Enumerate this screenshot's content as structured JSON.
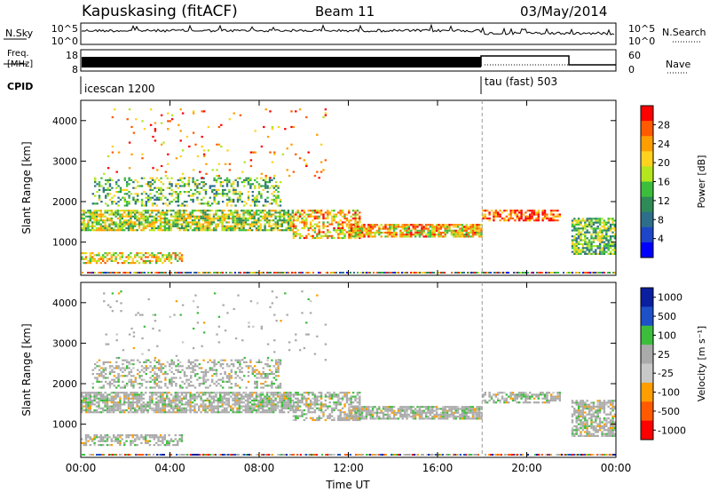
{
  "header": {
    "station": "Kapuskasing (fitACF)",
    "beam": "Beam 11",
    "date": "03/May/2014"
  },
  "strip": {
    "nsky_label": "N.Sky",
    "nsearch_label": "N.Search",
    "freq_label_1": "Freq.",
    "freq_label_2": "[MHz]",
    "nave_label": "Nave",
    "cpid_label": "CPID",
    "nsky_ticks": [
      "10^5",
      "10^0"
    ],
    "nsearch_ticks": [
      "10^5",
      "10^0"
    ],
    "freq_ticks": [
      "18",
      "8"
    ],
    "nave_ticks": [
      "60",
      "0"
    ],
    "cpid_segments": [
      {
        "name": "icescan 1200",
        "start_hour": 0,
        "end_hour": 18
      },
      {
        "name": "tau (fast) 503",
        "start_hour": 18,
        "end_hour": 24
      }
    ]
  },
  "chart_data": [
    {
      "type": "heatmap",
      "panel": "power",
      "ylabel": "Slant Range [km]",
      "xlabel": "",
      "colorbar_label": "Power [dB]",
      "xlim": [
        0,
        24
      ],
      "ylim": [
        180,
        4500
      ],
      "x_tick_hours": [
        0,
        4,
        8,
        12,
        16,
        20,
        24
      ],
      "y_ticks": [
        1000,
        2000,
        3000,
        4000
      ],
      "colorbar": {
        "ticks": [
          "28",
          "24",
          "20",
          "16",
          "12",
          "8",
          "4"
        ],
        "colors": [
          "#ff0000",
          "#ff5a00",
          "#ff9e00",
          "#ffd21e",
          "#b4e61e",
          "#3cbe3c",
          "#2e8b57",
          "#2e6e8b",
          "#1e46c8",
          "#0000ff"
        ]
      },
      "bands": [
        {
          "t0": 0.0,
          "t1": 9.5,
          "r0": 1300,
          "r1": 1800,
          "density": 0.75,
          "level": 0.45
        },
        {
          "t0": 0.5,
          "t1": 9.0,
          "r0": 1900,
          "r1": 2600,
          "density": 0.35,
          "level": 0.55
        },
        {
          "t0": 0.0,
          "t1": 4.5,
          "r0": 500,
          "r1": 750,
          "density": 0.55,
          "level": 0.35
        },
        {
          "t0": 9.5,
          "t1": 12.5,
          "r0": 1100,
          "r1": 1800,
          "density": 0.55,
          "level": 0.3
        },
        {
          "t0": 12.0,
          "t1": 18.0,
          "r0": 1150,
          "r1": 1450,
          "density": 0.8,
          "level": 0.3
        },
        {
          "t0": 18.0,
          "t1": 21.5,
          "r0": 1550,
          "r1": 1800,
          "density": 0.6,
          "level": 0.15
        },
        {
          "t0": 22.0,
          "t1": 24.0,
          "r0": 700,
          "r1": 1600,
          "density": 0.7,
          "level": 0.55
        },
        {
          "t0": 1.0,
          "t1": 11.0,
          "r0": 2600,
          "r1": 4300,
          "density": 0.03,
          "level": 0.2
        }
      ]
    },
    {
      "type": "heatmap",
      "panel": "velocity",
      "ylabel": "Slant Range [km]",
      "xlabel": "Time UT",
      "colorbar_label": "Velocity [m s⁻¹]",
      "xlim": [
        0,
        24
      ],
      "ylim": [
        180,
        4500
      ],
      "x_tick_labels": [
        "00:00",
        "04:00",
        "08:00",
        "12:00",
        "16:00",
        "20:00",
        "00:00"
      ],
      "x_tick_hours": [
        0,
        4,
        8,
        12,
        16,
        20,
        24
      ],
      "y_ticks": [
        1000,
        2000,
        3000,
        4000
      ],
      "colorbar": {
        "ticks": [
          "1000",
          "500",
          "100",
          "25",
          "-25",
          "-100",
          "-500",
          "-1000"
        ],
        "colors": [
          "#0a1ea0",
          "#1e50c8",
          "#3cbe3c",
          "#aaaaaa",
          "#c8c8c8",
          "#ff9e00",
          "#ff5a00",
          "#ff0000"
        ]
      },
      "bands": [
        {
          "t0": 0.0,
          "t1": 9.5,
          "r0": 1300,
          "r1": 1800,
          "density": 0.75,
          "level": 0.45
        },
        {
          "t0": 0.5,
          "t1": 9.0,
          "r0": 1900,
          "r1": 2600,
          "density": 0.35,
          "level": 0.6
        },
        {
          "t0": 0.0,
          "t1": 4.5,
          "r0": 500,
          "r1": 750,
          "density": 0.55,
          "level": 0.4
        },
        {
          "t0": 9.5,
          "t1": 12.5,
          "r0": 1100,
          "r1": 1800,
          "density": 0.55,
          "level": 0.45
        },
        {
          "t0": 12.0,
          "t1": 18.0,
          "r0": 1150,
          "r1": 1450,
          "density": 0.8,
          "level": 0.45
        },
        {
          "t0": 18.0,
          "t1": 21.5,
          "r0": 1550,
          "r1": 1800,
          "density": 0.6,
          "level": 0.45
        },
        {
          "t0": 22.0,
          "t1": 24.0,
          "r0": 700,
          "r1": 1600,
          "density": 0.7,
          "level": 0.5
        },
        {
          "t0": 1.0,
          "t1": 11.0,
          "r0": 2600,
          "r1": 4300,
          "density": 0.03,
          "level": 0.5
        }
      ]
    }
  ]
}
